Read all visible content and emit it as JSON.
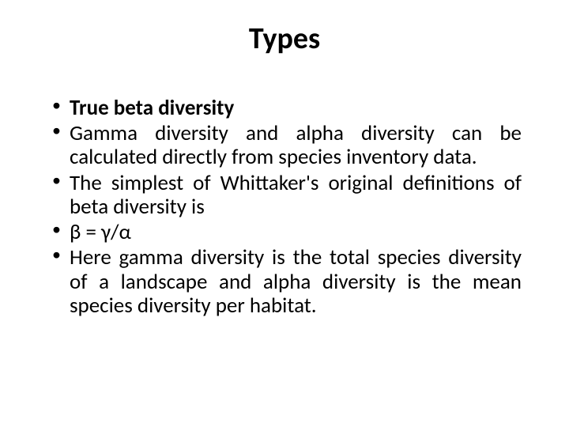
{
  "slide": {
    "title": "Types",
    "title_fontsize": 38,
    "title_weight": 700,
    "bullets": [
      {
        "text": "True beta diversity",
        "bold": true
      },
      {
        "text": "Gamma diversity and alpha diversity can be calculated directly from species inventory data.",
        "bold": false
      },
      {
        "text": "The simplest of Whittaker's original definitions of beta diversity is",
        "bold": false
      },
      {
        "text": "β = γ/α",
        "bold": false
      },
      {
        "text": "Here gamma diversity is the total species diversity of a landscape and alpha diversity is the mean species diversity per habitat.",
        "bold": false
      }
    ],
    "bullet_fontsize": 27,
    "text_color": "#000000",
    "background_color": "#ffffff",
    "font_family": "Calibri, Arial, sans-serif"
  }
}
